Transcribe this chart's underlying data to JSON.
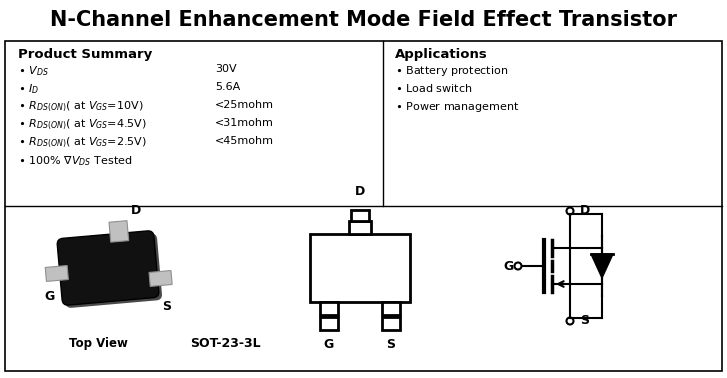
{
  "title": "N-Channel Enhancement Mode Field Effect Transistor",
  "title_fontsize": 15,
  "bg_color": "#ffffff",
  "border_color": "#000000",
  "product_summary_title": "Product Summary",
  "applications_title": "Applications",
  "applications_items": [
    "Battery protection",
    "Load switch",
    "Power management"
  ],
  "package_label": "SOT-23-3L",
  "top_view_label": "Top View"
}
